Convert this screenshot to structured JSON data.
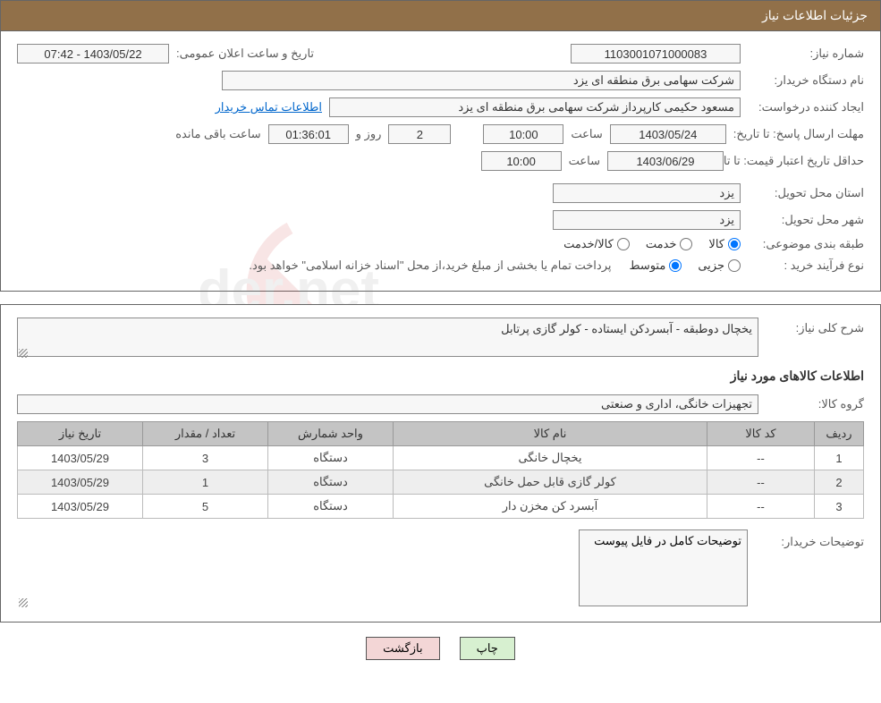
{
  "header": {
    "title": "جزئیات اطلاعات نیاز"
  },
  "fields": {
    "need_number": {
      "label": "شماره نیاز:",
      "value": "1103001071000083"
    },
    "announce": {
      "label": "تاریخ و ساعت اعلان عمومی:",
      "value": "1403/05/22 - 07:42"
    },
    "buyer_org": {
      "label": "نام دستگاه خریدار:",
      "value": "شرکت سهامی برق منطقه ای یزد"
    },
    "requester": {
      "label": "ایجاد کننده درخواست:",
      "value": "مسعود حکیمی کارپرداز شرکت سهامی برق منطقه ای یزد"
    },
    "contact_link": "اطلاعات تماس خریدار",
    "reply_deadline": {
      "label": "مهلت ارسال پاسخ:",
      "date_prefix": "تا تاریخ:",
      "date": "1403/05/24",
      "time_label": "ساعت",
      "time": "10:00",
      "days_count": "2",
      "days_and": "روز و",
      "hours": "01:36:01",
      "remaining": "ساعت باقی مانده"
    },
    "price_validity": {
      "label": "حداقل تاریخ اعتبار قیمت:",
      "date_prefix": "تا تاریخ:",
      "date": "1403/06/29",
      "time_label": "ساعت",
      "time": "10:00"
    },
    "delivery_province": {
      "label": "استان محل تحویل:",
      "value": "یزد"
    },
    "delivery_city": {
      "label": "شهر محل تحویل:",
      "value": "یزد"
    },
    "classification": {
      "label": "طبقه بندی موضوعی:",
      "options": [
        "کالا",
        "خدمت",
        "کالا/خدمت"
      ],
      "selected": 0
    },
    "process_type": {
      "label": "نوع فرآیند خرید :",
      "options": [
        "جزیی",
        "متوسط"
      ],
      "selected": 1,
      "note": "پرداخت تمام یا بخشی از مبلغ خرید،از محل \"اسناد خزانه اسلامی\" خواهد بود."
    }
  },
  "section2": {
    "summary": {
      "label": "شرح کلی نیاز:",
      "text": "یخچال دوطبقه - آبسردکن ایستاده - کولر گازی پرتابل"
    },
    "items_heading": "اطلاعات کالاهای مورد نیاز",
    "goods_group": {
      "label": "گروه کالا:",
      "value": "تجهیزات خانگی، اداری و صنعتی"
    },
    "table": {
      "columns": [
        "ردیف",
        "کد کالا",
        "نام کالا",
        "واحد شمارش",
        "تعداد / مقدار",
        "تاریخ نیاز"
      ],
      "rows": [
        [
          "1",
          "--",
          "یخچال خانگی",
          "دستگاه",
          "3",
          "1403/05/29"
        ],
        [
          "2",
          "--",
          "کولر گازی قابل حمل خانگی",
          "دستگاه",
          "1",
          "1403/05/29"
        ],
        [
          "3",
          "--",
          "آبسرد کن مخزن دار",
          "دستگاه",
          "5",
          "1403/05/29"
        ]
      ],
      "col_widths": [
        "55px",
        "120px",
        "auto",
        "140px",
        "140px",
        "140px"
      ]
    },
    "buyer_desc": {
      "label": "توضیحات خریدار:",
      "text": "توضیحات کامل در فایل پیوست"
    }
  },
  "buttons": {
    "print": "چاپ",
    "back": "بازگشت"
  },
  "colors": {
    "header_bg": "#917049",
    "border": "#666666",
    "textbox_bg": "#f7f7f7",
    "th_bg": "#c4c4c4",
    "btn_print_bg": "#d7f0d0",
    "btn_back_bg": "#f3d6d6"
  }
}
